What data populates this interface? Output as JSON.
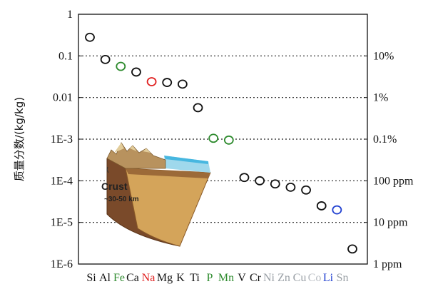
{
  "chart_data": {
    "type": "scatter",
    "ylabel": "质量分数/(kg/kg)",
    "y_scale": "log",
    "ylim": [
      1e-06,
      1
    ],
    "y_ticks_left": [
      "1",
      "0.1",
      "0.01",
      "1E-3",
      "1E-4",
      "1E-5",
      "1E-6"
    ],
    "y_ticks_right": [
      "10%",
      "1%",
      "0.1%",
      "100 ppm",
      "10 ppm",
      "1 ppm"
    ],
    "y_ticks_right_values": [
      0.1,
      0.01,
      0.001,
      0.0001,
      1e-05,
      1e-06
    ],
    "dotted_gridlines_at": [
      0.1,
      0.01,
      0.001,
      0.0001,
      1e-05
    ],
    "categories": [
      "Si",
      "Al",
      "Fe",
      "Ca",
      "Na",
      "Mg",
      "K",
      "Ti",
      "P",
      "Mn",
      "V",
      "Cr",
      "Ni",
      "Zn",
      "Cu",
      "Co",
      "Li",
      "Sn"
    ],
    "points": [
      {
        "element": "Si",
        "value": 0.28,
        "color": "#111111"
      },
      {
        "element": "Al",
        "value": 0.082,
        "color": "#111111"
      },
      {
        "element": "Fe",
        "value": 0.056,
        "color": "#2e8b2e"
      },
      {
        "element": "Ca",
        "value": 0.041,
        "color": "#111111"
      },
      {
        "element": "Na",
        "value": 0.024,
        "color": "#e02020"
      },
      {
        "element": "Mg",
        "value": 0.023,
        "color": "#111111"
      },
      {
        "element": "K",
        "value": 0.021,
        "color": "#111111"
      },
      {
        "element": "Ti",
        "value": 0.0057,
        "color": "#111111"
      },
      {
        "element": "P",
        "value": 0.00105,
        "color": "#2e8b2e"
      },
      {
        "element": "Mn",
        "value": 0.00095,
        "color": "#2e8b2e"
      },
      {
        "element": "V",
        "value": 0.00012,
        "color": "#111111"
      },
      {
        "element": "Cr",
        "value": 0.0001,
        "color": "#111111"
      },
      {
        "element": "Ni",
        "value": 8.4e-05,
        "color": "#111111"
      },
      {
        "element": "Zn",
        "value": 7e-05,
        "color": "#111111"
      },
      {
        "element": "Cu",
        "value": 6e-05,
        "color": "#111111"
      },
      {
        "element": "Co",
        "value": 2.5e-05,
        "color": "#111111"
      },
      {
        "element": "Li",
        "value": 2e-05,
        "color": "#1f3fd0"
      },
      {
        "element": "Sn",
        "value": 2.3e-06,
        "color": "#111111"
      }
    ],
    "category_label_colors": {
      "Fe": "#2e8b2e",
      "Na": "#e02020",
      "P": "#2e8b2e",
      "Mn": "#2e8b2e",
      "Ni": "#9aa0a6",
      "Zn": "#9aa0a6",
      "Cu": "#9aa0a6",
      "Co": "#b8bcc2",
      "Li": "#1f3fd0",
      "Sn": "#9aa0a6"
    },
    "grid": "dotted horizontal",
    "legend": "none"
  },
  "inset": {
    "title": "Crust",
    "subtitle": "~30-50 km"
  }
}
